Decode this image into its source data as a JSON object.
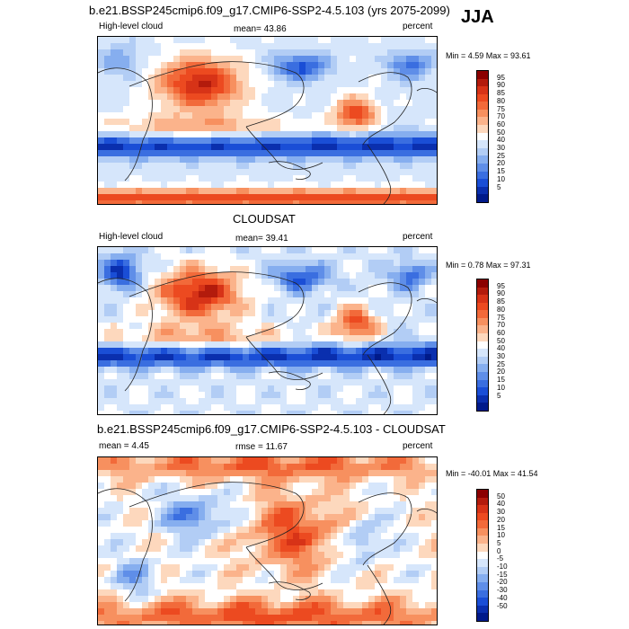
{
  "season": "JJA",
  "panels": [
    {
      "id": "model",
      "title": "b.e21.BSSP245cmip6.f09_g17.CMIP6-SSP2-4.5.103 (yrs 2075-2099)",
      "left_label": "High-level cloud",
      "center_label": "mean=  43.86",
      "right_label": "percent",
      "minmax": "Min =   4.59 Max =  93.61",
      "ticks": [
        "95",
        "90",
        "85",
        "80",
        "75",
        "70",
        "60",
        "50",
        "40",
        "30",
        "25",
        "20",
        "15",
        "10",
        "5"
      ],
      "colors": [
        "#8b0000",
        "#b31b0c",
        "#d73317",
        "#ec4a20",
        "#f26a3a",
        "#f7905f",
        "#fbb38b",
        "#fdd8bd",
        "#ffffff",
        "#d6e6fb",
        "#b2cdf5",
        "#86aeef",
        "#5f8ee8",
        "#3a6ee0",
        "#1a4ed6",
        "#0a2fae",
        "#001a8a"
      ],
      "field": "model"
    },
    {
      "id": "obs",
      "title": "CLOUDSAT",
      "left_label": "High-level cloud",
      "center_label": "mean=  39.41",
      "right_label": "percent",
      "minmax": "Min =   0.78 Max =  97.31",
      "ticks": [
        "95",
        "90",
        "85",
        "80",
        "75",
        "70",
        "60",
        "50",
        "40",
        "30",
        "25",
        "20",
        "15",
        "10",
        "5"
      ],
      "colors": [
        "#8b0000",
        "#b31b0c",
        "#d73317",
        "#ec4a20",
        "#f26a3a",
        "#f7905f",
        "#fbb38b",
        "#fdd8bd",
        "#ffffff",
        "#d6e6fb",
        "#b2cdf5",
        "#86aeef",
        "#5f8ee8",
        "#3a6ee0",
        "#1a4ed6",
        "#0a2fae",
        "#001a8a"
      ],
      "field": "obs"
    },
    {
      "id": "diff",
      "title": "b.e21.BSSP245cmip6.f09_g17.CMIP6-SSP2-4.5.103 - CLOUDSAT",
      "left_label": "mean =   4.45",
      "center_label": "rmse =  11.67",
      "right_label": "percent",
      "minmax": "Min = -40.01 Max =  41.54",
      "ticks": [
        "50",
        "40",
        "30",
        "20",
        "15",
        "10",
        "5",
        "0",
        "-5",
        "-10",
        "-15",
        "-20",
        "-30",
        "-40",
        "-50"
      ],
      "colors": [
        "#8b0000",
        "#b31b0c",
        "#d73317",
        "#ec4a20",
        "#f26a3a",
        "#f7905f",
        "#fbb38b",
        "#fdd8bd",
        "#ffffff",
        "#d6e6fb",
        "#b2cdf5",
        "#86aeef",
        "#5f8ee8",
        "#3a6ee0",
        "#1a4ed6",
        "#0a2fae",
        "#001a8a"
      ],
      "field": "diff"
    }
  ]
}
